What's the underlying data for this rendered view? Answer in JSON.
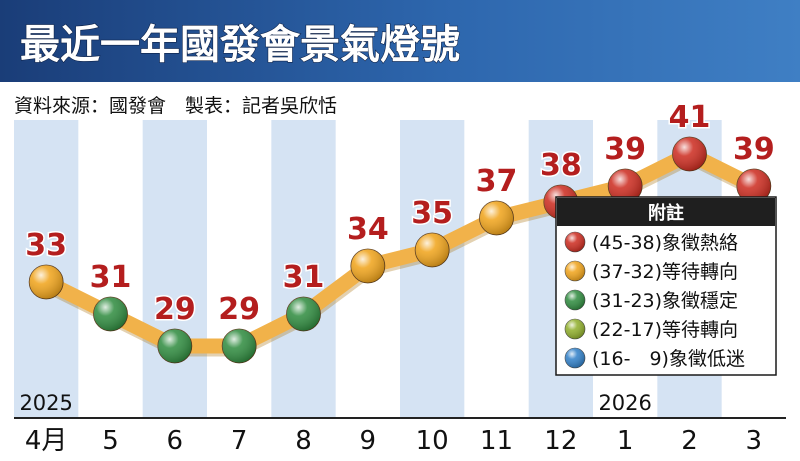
{
  "header": {
    "title": "最近一年國發會景氣燈號",
    "source": "資料來源：國發會　製表：記者吳欣恬"
  },
  "legend": {
    "title": "附註",
    "items": [
      {
        "text": "(45-38)象徵熱絡",
        "color": "#cc2a1e"
      },
      {
        "text": "(37-32)等待轉向",
        "color": "#f0a319"
      },
      {
        "text": "(31-23)象徵穩定",
        "color": "#2e8b3e"
      },
      {
        "text": "(22-17)等待轉向",
        "color": "#8fae2a"
      },
      {
        "text": "(16-　9)象徵低迷",
        "color": "#2f7fc8"
      }
    ]
  },
  "chart_data": {
    "type": "line",
    "title": "最近一年國發會景氣燈號",
    "categories": [
      "4月",
      "5",
      "6",
      "7",
      "8",
      "9",
      "10",
      "11",
      "12",
      "1",
      "2",
      "3"
    ],
    "year_labels": [
      {
        "text": "2025",
        "category_index": 0
      },
      {
        "text": "2026",
        "category_index": 9
      }
    ],
    "values": [
      33,
      31,
      29,
      29,
      31,
      34,
      35,
      37,
      38,
      39,
      41,
      39
    ],
    "point_colors": [
      "#f0a319",
      "#2e8b3e",
      "#2e8b3e",
      "#2e8b3e",
      "#2e8b3e",
      "#f0a319",
      "#f0a319",
      "#f0a319",
      "#cc2a1e",
      "#cc2a1e",
      "#cc2a1e",
      "#cc2a1e"
    ],
    "line_color": "#f1b24a",
    "label_color": "#b41e1e",
    "band_color": "#d5e3f3",
    "ylim": [
      27,
      42
    ],
    "grid": false
  }
}
